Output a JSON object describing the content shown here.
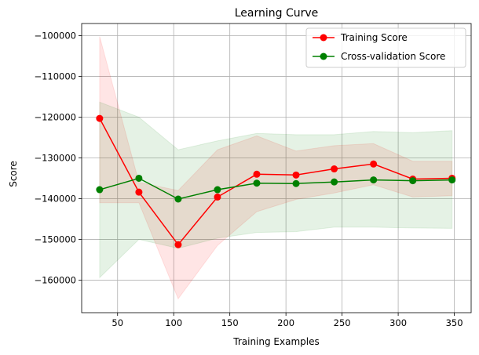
{
  "chart_data": {
    "type": "line",
    "title": "Learning Curve",
    "xlabel": "Training Examples",
    "ylabel": "Score",
    "xlim": [
      18,
      365
    ],
    "ylim": [
      -168000,
      -97000
    ],
    "xticks": [
      50,
      100,
      150,
      200,
      250,
      300,
      350
    ],
    "yticks": [
      -100000,
      -110000,
      -120000,
      -130000,
      -140000,
      -150000,
      -160000
    ],
    "grid": true,
    "legend_position": "top-right",
    "x": [
      34,
      69,
      104,
      139,
      174,
      209,
      243,
      278,
      313,
      348
    ],
    "series": [
      {
        "name": "Training Score",
        "color": "#ff0000",
        "values": [
          -120300,
          -138400,
          -151300,
          -139600,
          -134000,
          -134200,
          -132700,
          -131500,
          -135200,
          -135000
        ],
        "band_upper": [
          -100200,
          -136000,
          -138000,
          -128000,
          -124600,
          -128300,
          -127000,
          -126500,
          -130800,
          -130800
        ],
        "band_lower": [
          -141000,
          -141000,
          -164600,
          -151500,
          -143200,
          -140200,
          -138600,
          -136600,
          -139600,
          -139300
        ]
      },
      {
        "name": "Cross-validation Score",
        "color": "#008000",
        "values": [
          -137800,
          -135000,
          -140100,
          -137800,
          -136200,
          -136300,
          -135900,
          -135400,
          -135600,
          -135400
        ],
        "band_upper": [
          -116300,
          -120000,
          -128000,
          -125800,
          -124000,
          -124300,
          -124300,
          -123500,
          -123800,
          -123300
        ],
        "band_lower": [
          -159400,
          -150000,
          -152200,
          -149700,
          -148300,
          -148100,
          -147000,
          -147000,
          -147200,
          -147300
        ]
      }
    ]
  }
}
